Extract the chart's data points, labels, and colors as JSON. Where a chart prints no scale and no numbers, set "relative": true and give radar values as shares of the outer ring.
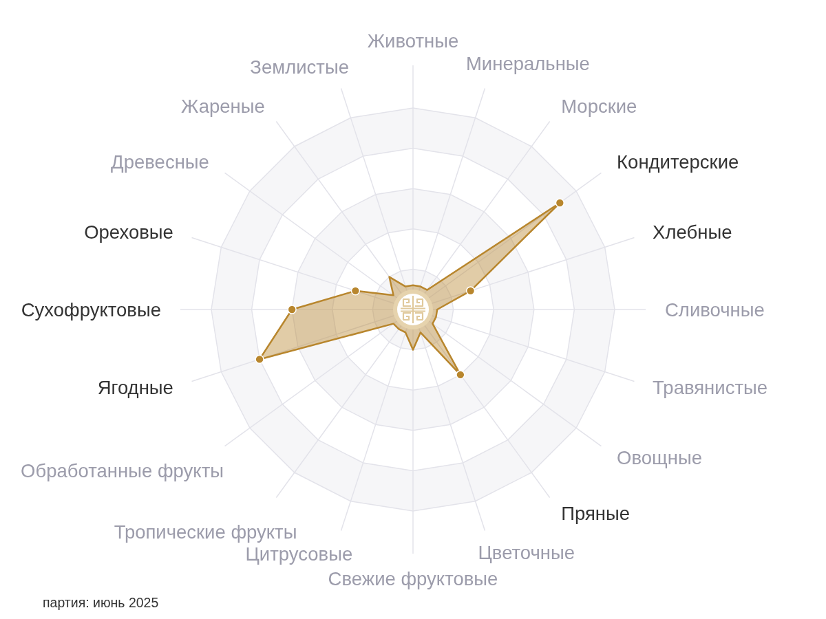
{
  "chart_data": {
    "type": "radar",
    "relative": true,
    "grid": true,
    "marker": "circle",
    "categories": [
      "Животные",
      "Минеральные",
      "Морские",
      "Кондитерские",
      "Хлебные",
      "Сливочные",
      "Травянистые",
      "Овощные",
      "Пряные",
      "Цветочные",
      "Свежие фруктовые",
      "Цитрусовые",
      "Тропические фрукты",
      "Обработанные фрукты",
      "Ягодные",
      "Сухофруктовые",
      "Ореховые",
      "Древесные",
      "Жареные",
      "Землистые"
    ],
    "series": [
      {
        "color": "#b8862d",
        "values": [
          0.12,
          0.12,
          0.12,
          0.9,
          0.3,
          0.12,
          0.12,
          0.12,
          0.4,
          0.12,
          0.2,
          0.12,
          0.12,
          0.12,
          0.8,
          0.6,
          0.3,
          0.12,
          0.2,
          0.12
        ],
        "colors": [
          null,
          null,
          null,
          "#b8862d",
          "#b8862d",
          null,
          null,
          null,
          "#b8862d",
          null,
          null,
          null,
          null,
          null,
          "#b8862d",
          "#b8862d",
          "#b8862d",
          null,
          null,
          null
        ]
      }
    ],
    "annotations": [
      "партия: июнь 2025"
    ]
  }
}
